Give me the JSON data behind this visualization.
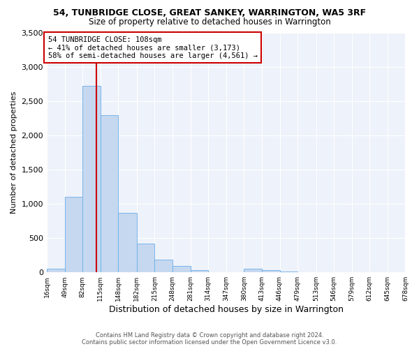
{
  "title": "54, TUNBRIDGE CLOSE, GREAT SANKEY, WARRINGTON, WA5 3RF",
  "subtitle": "Size of property relative to detached houses in Warrington",
  "xlabel": "Distribution of detached houses by size in Warrington",
  "ylabel": "Number of detached properties",
  "bar_edges": [
    16,
    49,
    82,
    115,
    148,
    182,
    215,
    248,
    281,
    314,
    347,
    380,
    413,
    446,
    479,
    513,
    546,
    579,
    612,
    645,
    678
  ],
  "bar_heights": [
    50,
    1100,
    2720,
    2290,
    870,
    420,
    185,
    95,
    30,
    0,
    0,
    50,
    30,
    10,
    0,
    0,
    0,
    0,
    0,
    0
  ],
  "bar_color": "#c5d8f0",
  "bar_edgecolor": "#6aaee8",
  "property_size": 108,
  "vline_color": "#cc0000",
  "annotation_text": "54 TUNBRIDGE CLOSE: 108sqm\n← 41% of detached houses are smaller (3,173)\n58% of semi-detached houses are larger (4,561) →",
  "annotation_box_edgecolor": "#cc0000",
  "ylim": [
    0,
    3500
  ],
  "yticks": [
    0,
    500,
    1000,
    1500,
    2000,
    2500,
    3000,
    3500
  ],
  "footer_line1": "Contains HM Land Registry data © Crown copyright and database right 2024.",
  "footer_line2": "Contains public sector information licensed under the Open Government Licence v3.0.",
  "bg_color": "#eef2fa",
  "title_fontsize": 9,
  "subtitle_fontsize": 8.5,
  "xlabel_fontsize": 9,
  "ylabel_fontsize": 8,
  "tick_label_fontsize": 6.5,
  "tick_labels": [
    "16sqm",
    "49sqm",
    "82sqm",
    "115sqm",
    "148sqm",
    "182sqm",
    "215sqm",
    "248sqm",
    "281sqm",
    "314sqm",
    "347sqm",
    "380sqm",
    "413sqm",
    "446sqm",
    "479sqm",
    "513sqm",
    "546sqm",
    "579sqm",
    "612sqm",
    "645sqm",
    "678sqm"
  ]
}
